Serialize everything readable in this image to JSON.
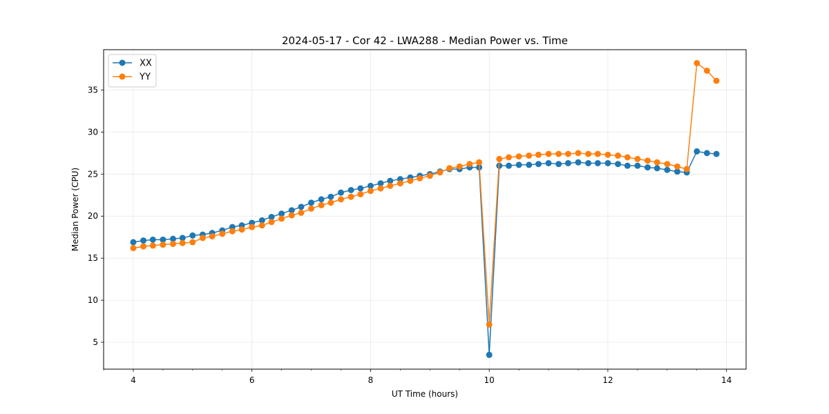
{
  "chart_data": {
    "type": "line",
    "title": "2024-05-17 - Cor 42 - LWA288 - Median Power vs. Time",
    "xlabel": "UT Time (hours)",
    "ylabel": "Median Power (CPU)",
    "xlim": [
      3.5,
      14.33
    ],
    "ylim": [
      1.8,
      39.8
    ],
    "xticks": [
      4,
      6,
      8,
      10,
      12,
      14
    ],
    "yticks": [
      5,
      10,
      15,
      20,
      25,
      30,
      35
    ],
    "grid": true,
    "legend_position": "top-left",
    "x": [
      4.0,
      4.17,
      4.33,
      4.5,
      4.67,
      4.83,
      5.0,
      5.17,
      5.33,
      5.5,
      5.67,
      5.83,
      6.0,
      6.17,
      6.33,
      6.5,
      6.67,
      6.83,
      7.0,
      7.17,
      7.33,
      7.5,
      7.67,
      7.83,
      8.0,
      8.17,
      8.33,
      8.5,
      8.67,
      8.83,
      9.0,
      9.17,
      9.33,
      9.5,
      9.67,
      9.83,
      10.0,
      10.17,
      10.33,
      10.5,
      10.67,
      10.83,
      11.0,
      11.17,
      11.33,
      11.5,
      11.67,
      11.83,
      12.0,
      12.17,
      12.33,
      12.5,
      12.67,
      12.83,
      13.0,
      13.17,
      13.33,
      13.5,
      13.67,
      13.83
    ],
    "series": [
      {
        "name": "XX",
        "color": "#1f77b4",
        "values": [
          16.9,
          17.1,
          17.2,
          17.2,
          17.3,
          17.4,
          17.7,
          17.8,
          18.0,
          18.3,
          18.7,
          18.9,
          19.2,
          19.5,
          19.9,
          20.3,
          20.7,
          21.1,
          21.6,
          22.0,
          22.3,
          22.8,
          23.1,
          23.3,
          23.6,
          23.9,
          24.2,
          24.4,
          24.6,
          24.8,
          25.0,
          25.3,
          25.6,
          25.6,
          25.8,
          25.8,
          3.5,
          26.0,
          26.0,
          26.1,
          26.1,
          26.2,
          26.3,
          26.2,
          26.3,
          26.4,
          26.3,
          26.3,
          26.3,
          26.2,
          26.0,
          26.0,
          25.8,
          25.7,
          25.5,
          25.3,
          25.2,
          27.7,
          27.5,
          27.4
        ]
      },
      {
        "name": "YY",
        "color": "#ff7f0e",
        "values": [
          16.2,
          16.4,
          16.5,
          16.6,
          16.7,
          16.8,
          16.9,
          17.4,
          17.6,
          17.9,
          18.2,
          18.4,
          18.7,
          18.9,
          19.3,
          19.7,
          20.1,
          20.4,
          20.9,
          21.3,
          21.6,
          22.0,
          22.3,
          22.6,
          23.0,
          23.3,
          23.6,
          23.9,
          24.2,
          24.5,
          24.8,
          25.2,
          25.7,
          25.9,
          26.2,
          26.4,
          7.1,
          26.8,
          27.0,
          27.1,
          27.2,
          27.3,
          27.4,
          27.4,
          27.4,
          27.5,
          27.4,
          27.4,
          27.3,
          27.2,
          27.0,
          26.8,
          26.6,
          26.4,
          26.2,
          25.9,
          25.6,
          38.2,
          37.3,
          36.1
        ]
      }
    ]
  }
}
